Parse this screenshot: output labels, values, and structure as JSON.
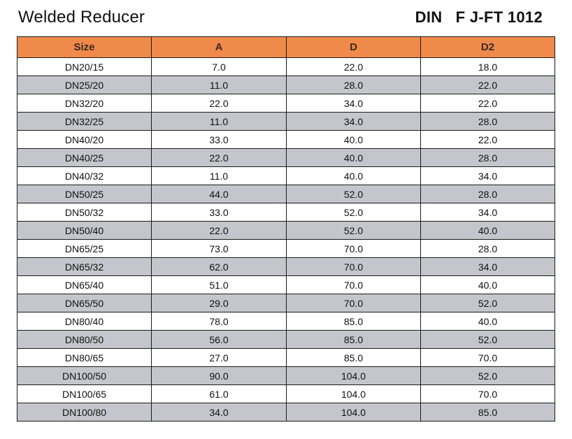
{
  "header": {
    "title": "Welded Reducer",
    "standard": "DIN   F J-FT 1012"
  },
  "colors": {
    "header_bg": "#f08a4b",
    "stripe_bg": "#c4c6cb",
    "row_bg": "#ffffff",
    "grid_line": "#1a1a1a"
  },
  "table": {
    "columns": [
      "Size",
      "A",
      "D",
      "D2"
    ],
    "rows": [
      [
        "DN20/15",
        "7.0",
        "22.0",
        "18.0"
      ],
      [
        "DN25/20",
        "11.0",
        "28.0",
        "22.0"
      ],
      [
        "DN32/20",
        "22.0",
        "34.0",
        "22.0"
      ],
      [
        "DN32/25",
        "11.0",
        "34.0",
        "28.0"
      ],
      [
        "DN40/20",
        "33.0",
        "40.0",
        "22.0"
      ],
      [
        "DN40/25",
        "22.0",
        "40.0",
        "28.0"
      ],
      [
        "DN40/32",
        "11.0",
        "40.0",
        "34.0"
      ],
      [
        "DN50/25",
        "44.0",
        "52.0",
        "28.0"
      ],
      [
        "DN50/32",
        "33.0",
        "52.0",
        "34.0"
      ],
      [
        "DN50/40",
        "22.0",
        "52.0",
        "40.0"
      ],
      [
        "DN65/25",
        "73.0",
        "70.0",
        "28.0"
      ],
      [
        "DN65/32",
        "62.0",
        "70.0",
        "34.0"
      ],
      [
        "DN65/40",
        "51.0",
        "70.0",
        "40.0"
      ],
      [
        "DN65/50",
        "29.0",
        "70.0",
        "52.0"
      ],
      [
        "DN80/40",
        "78.0",
        "85.0",
        "40.0"
      ],
      [
        "DN80/50",
        "56.0",
        "85.0",
        "52.0"
      ],
      [
        "DN80/65",
        "27.0",
        "85.0",
        "70.0"
      ],
      [
        "DN100/50",
        "90.0",
        "104.0",
        "52.0"
      ],
      [
        "DN100/65",
        "61.0",
        "104.0",
        "70.0"
      ],
      [
        "DN100/80",
        "34.0",
        "104.0",
        "85.0"
      ]
    ]
  }
}
